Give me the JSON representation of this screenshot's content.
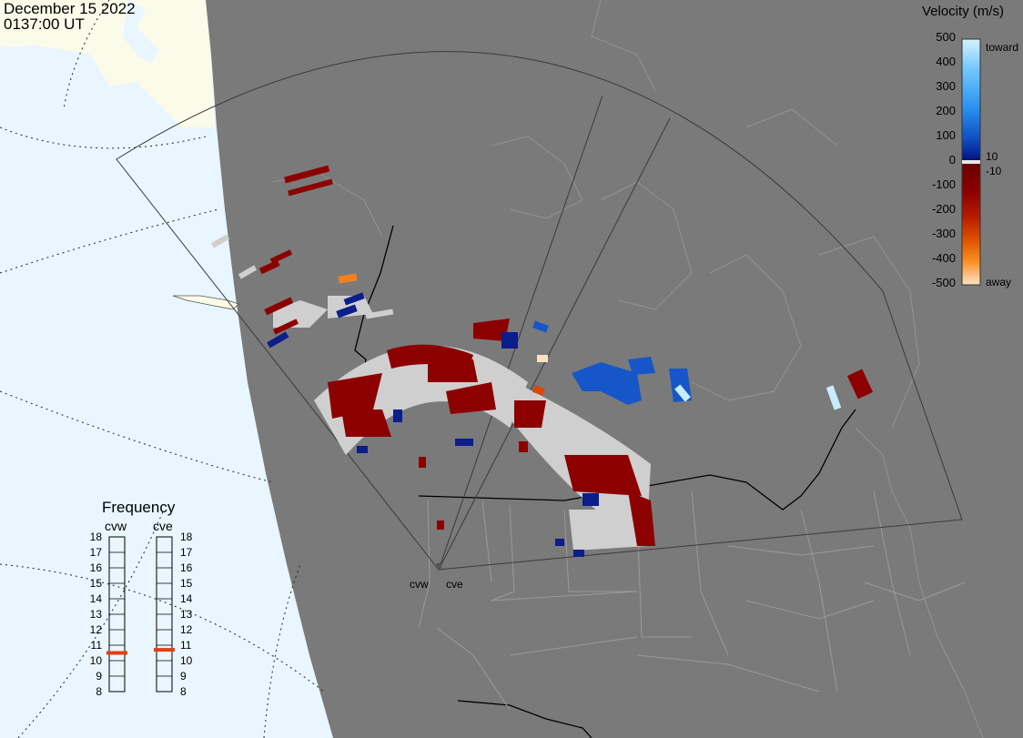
{
  "header": {
    "date": "December 15 2022",
    "time": "0137:00 UT"
  },
  "velocity_scale": {
    "title": "Velocity (m/s)",
    "toward_label": "toward",
    "away_label": "away",
    "ticks": [
      "500",
      "400",
      "300",
      "200",
      "100",
      "0",
      "-100",
      "-200",
      "-300",
      "-400",
      "-500"
    ],
    "threshold_positive": "10",
    "threshold_negative": "-10",
    "colors": [
      "#c8ecff",
      "#7fd0ff",
      "#2a9cf0",
      "#1460d0",
      "#0a36a8",
      "#061a88",
      "#101060",
      "#d8d8d8",
      "#6a0000",
      "#8c0000",
      "#b01800",
      "#d84800",
      "#f08020",
      "#fcbb70",
      "#ffe0c4"
    ]
  },
  "frequency_panel": {
    "title": "Frequency",
    "radar_left": "cvw",
    "radar_right": "cve",
    "levels": [
      "18",
      "17",
      "16",
      "15",
      "14",
      "13",
      "12",
      "11",
      "10",
      "9",
      "8"
    ],
    "cvw_frequency_mhz": 10.5,
    "cve_frequency_mhz": 10.7,
    "marker_color": "#e04010"
  },
  "radar_sites": {
    "west_label": "cvw",
    "east_label": "cve"
  },
  "map_colors": {
    "ocean": "#e9f6ff",
    "ice": "#fbfbea",
    "night": "#7a7a7a",
    "no_echo": "#cfcfcf"
  }
}
